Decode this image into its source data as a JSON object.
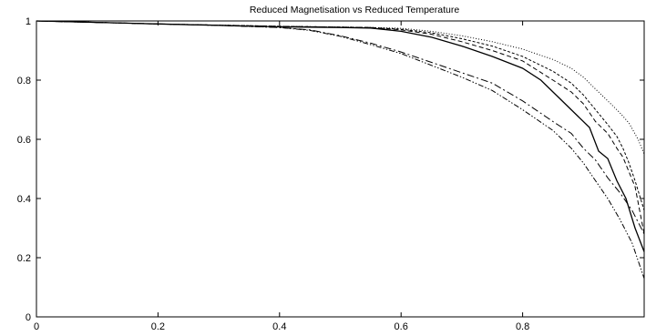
{
  "chart_data": {
    "type": "line",
    "title": "Reduced Magnetisation vs Reduced Temperature",
    "xlabel": "",
    "ylabel": "",
    "xlim": [
      0,
      1
    ],
    "ylim": [
      0,
      1
    ],
    "x_ticks": [
      0,
      0.2,
      0.4,
      0.6,
      0.8
    ],
    "x_tick_labels": [
      "0",
      "0.2",
      "0.4",
      "0.6",
      "0.8"
    ],
    "y_ticks": [
      0,
      0.2,
      0.4,
      0.6,
      0.8,
      1
    ],
    "y_tick_labels": [
      "0",
      "0.2",
      "0.4",
      "0.6",
      "0.8",
      "1"
    ],
    "grid": false,
    "legend": "none",
    "series": [
      {
        "style": "solid",
        "points": [
          [
            0,
            1
          ],
          [
            0.1,
            0.995
          ],
          [
            0.2,
            0.99
          ],
          [
            0.3,
            0.985
          ],
          [
            0.4,
            0.98
          ],
          [
            0.5,
            0.978
          ],
          [
            0.55,
            0.976
          ],
          [
            0.6,
            0.965
          ],
          [
            0.65,
            0.945
          ],
          [
            0.7,
            0.915
          ],
          [
            0.75,
            0.88
          ],
          [
            0.8,
            0.84
          ],
          [
            0.83,
            0.8
          ],
          [
            0.86,
            0.74
          ],
          [
            0.89,
            0.68
          ],
          [
            0.91,
            0.64
          ],
          [
            0.925,
            0.56
          ],
          [
            0.94,
            0.535
          ],
          [
            0.955,
            0.46
          ],
          [
            0.97,
            0.4
          ],
          [
            0.985,
            0.3
          ],
          [
            1.0,
            0.22
          ]
        ]
      },
      {
        "style": "dashed",
        "points": [
          [
            0,
            1
          ],
          [
            0.2,
            0.99
          ],
          [
            0.4,
            0.982
          ],
          [
            0.55,
            0.978
          ],
          [
            0.6,
            0.97
          ],
          [
            0.65,
            0.955
          ],
          [
            0.7,
            0.93
          ],
          [
            0.75,
            0.9
          ],
          [
            0.8,
            0.865
          ],
          [
            0.85,
            0.8
          ],
          [
            0.88,
            0.76
          ],
          [
            0.9,
            0.72
          ],
          [
            0.92,
            0.66
          ],
          [
            0.94,
            0.62
          ],
          [
            0.955,
            0.57
          ],
          [
            0.965,
            0.54
          ],
          [
            0.975,
            0.49
          ],
          [
            0.985,
            0.44
          ],
          [
            1.0,
            0.28
          ]
        ]
      },
      {
        "style": "short-dashed",
        "points": [
          [
            0,
            1
          ],
          [
            0.2,
            0.99
          ],
          [
            0.4,
            0.982
          ],
          [
            0.55,
            0.978
          ],
          [
            0.6,
            0.972
          ],
          [
            0.65,
            0.96
          ],
          [
            0.7,
            0.94
          ],
          [
            0.75,
            0.915
          ],
          [
            0.8,
            0.88
          ],
          [
            0.85,
            0.83
          ],
          [
            0.88,
            0.79
          ],
          [
            0.9,
            0.75
          ],
          [
            0.92,
            0.7
          ],
          [
            0.94,
            0.65
          ],
          [
            0.955,
            0.61
          ],
          [
            0.965,
            0.57
          ],
          [
            0.975,
            0.52
          ],
          [
            0.985,
            0.46
          ],
          [
            1.0,
            0.36
          ]
        ]
      },
      {
        "style": "dotted",
        "points": [
          [
            0,
            1
          ],
          [
            0.2,
            0.99
          ],
          [
            0.4,
            0.982
          ],
          [
            0.55,
            0.978
          ],
          [
            0.6,
            0.975
          ],
          [
            0.65,
            0.965
          ],
          [
            0.7,
            0.95
          ],
          [
            0.75,
            0.93
          ],
          [
            0.8,
            0.905
          ],
          [
            0.85,
            0.87
          ],
          [
            0.88,
            0.84
          ],
          [
            0.9,
            0.81
          ],
          [
            0.92,
            0.77
          ],
          [
            0.94,
            0.73
          ],
          [
            0.96,
            0.69
          ],
          [
            0.975,
            0.655
          ],
          [
            0.99,
            0.6
          ],
          [
            1.0,
            0.55
          ]
        ]
      },
      {
        "style": "dash-dot",
        "points": [
          [
            0,
            1
          ],
          [
            0.1,
            0.995
          ],
          [
            0.2,
            0.99
          ],
          [
            0.3,
            0.985
          ],
          [
            0.4,
            0.978
          ],
          [
            0.45,
            0.97
          ],
          [
            0.5,
            0.95
          ],
          [
            0.55,
            0.925
          ],
          [
            0.6,
            0.895
          ],
          [
            0.65,
            0.86
          ],
          [
            0.7,
            0.825
          ],
          [
            0.75,
            0.79
          ],
          [
            0.8,
            0.73
          ],
          [
            0.85,
            0.66
          ],
          [
            0.88,
            0.62
          ],
          [
            0.9,
            0.57
          ],
          [
            0.92,
            0.53
          ],
          [
            0.94,
            0.47
          ],
          [
            0.96,
            0.42
          ],
          [
            0.98,
            0.36
          ],
          [
            1.0,
            0.28
          ]
        ]
      },
      {
        "style": "dash-dot-dot",
        "points": [
          [
            0,
            1
          ],
          [
            0.1,
            0.995
          ],
          [
            0.2,
            0.99
          ],
          [
            0.3,
            0.985
          ],
          [
            0.4,
            0.978
          ],
          [
            0.45,
            0.968
          ],
          [
            0.5,
            0.948
          ],
          [
            0.55,
            0.92
          ],
          [
            0.6,
            0.89
          ],
          [
            0.65,
            0.85
          ],
          [
            0.7,
            0.81
          ],
          [
            0.75,
            0.765
          ],
          [
            0.8,
            0.7
          ],
          [
            0.85,
            0.63
          ],
          [
            0.88,
            0.57
          ],
          [
            0.9,
            0.52
          ],
          [
            0.92,
            0.46
          ],
          [
            0.94,
            0.4
          ],
          [
            0.96,
            0.33
          ],
          [
            0.98,
            0.25
          ],
          [
            1.0,
            0.13
          ]
        ]
      }
    ]
  }
}
